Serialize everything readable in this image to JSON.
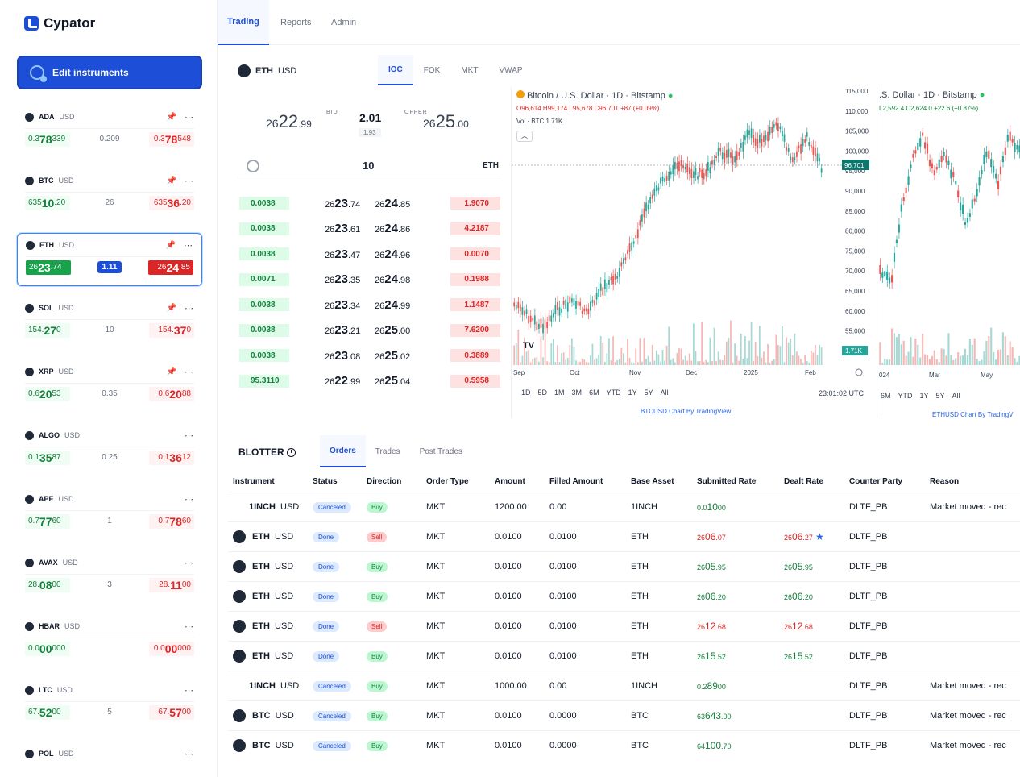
{
  "app": {
    "name": "Cypator"
  },
  "nav": {
    "tabs": [
      "Trading",
      "Reports",
      "Admin"
    ]
  },
  "sidebar": {
    "edit_button": "Edit instruments",
    "instruments": [
      {
        "sym": "ADA",
        "quote": "USD",
        "bid_pre": "0.3",
        "bid_big": "78",
        "bid_post": "339",
        "spread": "0.209",
        "ask_pre": "0.3",
        "ask_big": "78",
        "ask_post": "548",
        "pinned": true,
        "selected": false
      },
      {
        "sym": "BTC",
        "quote": "USD",
        "bid_pre": "635",
        "bid_big": "10",
        "bid_post": ".20",
        "spread": "26",
        "ask_pre": "635",
        "ask_big": "36",
        "ask_post": ".20",
        "pinned": true,
        "selected": false
      },
      {
        "sym": "ETH",
        "quote": "USD",
        "bid_pre": "26",
        "bid_big": "23",
        "bid_post": ".74",
        "spread": "1.11",
        "ask_pre": "26",
        "ask_big": "24",
        "ask_post": ".85",
        "pinned": true,
        "selected": true
      },
      {
        "sym": "SOL",
        "quote": "USD",
        "bid_pre": "154.",
        "bid_big": "27",
        "bid_post": "0",
        "spread": "10",
        "ask_pre": "154.",
        "ask_big": "37",
        "ask_post": "0",
        "pinned": true,
        "selected": false
      },
      {
        "sym": "XRP",
        "quote": "USD",
        "bid_pre": "0.6",
        "bid_big": "20",
        "bid_post": "53",
        "spread": "0.35",
        "ask_pre": "0.6",
        "ask_big": "20",
        "ask_post": "88",
        "pinned": true,
        "selected": false
      },
      {
        "sym": "ALGO",
        "quote": "USD",
        "bid_pre": "0.1",
        "bid_big": "35",
        "bid_post": "87",
        "spread": "0.25",
        "ask_pre": "0.1",
        "ask_big": "36",
        "ask_post": "12",
        "pinned": false,
        "selected": false
      },
      {
        "sym": "APE",
        "quote": "USD",
        "bid_pre": "0.7",
        "bid_big": "77",
        "bid_post": "60",
        "spread": "1",
        "ask_pre": "0.7",
        "ask_big": "78",
        "ask_post": "60",
        "pinned": false,
        "selected": false
      },
      {
        "sym": "AVAX",
        "quote": "USD",
        "bid_pre": "28.",
        "bid_big": "08",
        "bid_post": "00",
        "spread": "3",
        "ask_pre": "28.",
        "ask_big": "11",
        "ask_post": "00",
        "pinned": false,
        "selected": false
      },
      {
        "sym": "HBAR",
        "quote": "USD",
        "bid_pre": "0.0",
        "bid_big": "00",
        "bid_post": "000",
        "spread": "",
        "ask_pre": "0.0",
        "ask_big": "00",
        "ask_post": "000",
        "pinned": false,
        "selected": false
      },
      {
        "sym": "LTC",
        "quote": "USD",
        "bid_pre": "67.",
        "bid_big": "52",
        "bid_post": "00",
        "spread": "5",
        "ask_pre": "67.",
        "ask_big": "57",
        "ask_post": "00",
        "pinned": false,
        "selected": false
      },
      {
        "sym": "POL",
        "quote": "USD",
        "bid_pre": "",
        "bid_big": "",
        "bid_post": "",
        "spread": "",
        "ask_pre": "",
        "ask_big": "",
        "ask_post": "",
        "pinned": false,
        "selected": false
      }
    ]
  },
  "ticket": {
    "base": "ETH",
    "quote": "USD",
    "order_types": [
      "IOC",
      "FOK",
      "MKT",
      "VWAP"
    ],
    "bid_label": "BID",
    "offer_label": "OFFER",
    "bid": {
      "pre": "26",
      "big": "22",
      "post": ".99"
    },
    "offer": {
      "pre": "26",
      "big": "25",
      "post": ".00"
    },
    "spread": "2.01",
    "spread_sub": "1.93",
    "quantity": "10",
    "unit": "ETH",
    "ladder": [
      {
        "bid_qty": "0.0038",
        "b_pre": "26",
        "b_big": "23",
        "b_post": ".74",
        "a_pre": "26",
        "a_big": "24",
        "a_post": ".85",
        "ask_qty": "1.9070"
      },
      {
        "bid_qty": "0.0038",
        "b_pre": "26",
        "b_big": "23",
        "b_post": ".61",
        "a_pre": "26",
        "a_big": "24",
        "a_post": ".86",
        "ask_qty": "4.2187"
      },
      {
        "bid_qty": "0.0038",
        "b_pre": "26",
        "b_big": "23",
        "b_post": ".47",
        "a_pre": "26",
        "a_big": "24",
        "a_post": ".96",
        "ask_qty": "0.0070"
      },
      {
        "bid_qty": "0.0071",
        "b_pre": "26",
        "b_big": "23",
        "b_post": ".35",
        "a_pre": "26",
        "a_big": "24",
        "a_post": ".98",
        "ask_qty": "0.1988"
      },
      {
        "bid_qty": "0.0038",
        "b_pre": "26",
        "b_big": "23",
        "b_post": ".34",
        "a_pre": "26",
        "a_big": "24",
        "a_post": ".99",
        "ask_qty": "1.1487"
      },
      {
        "bid_qty": "0.0038",
        "b_pre": "26",
        "b_big": "23",
        "b_post": ".21",
        "a_pre": "26",
        "a_big": "25",
        "a_post": ".00",
        "ask_qty": "7.6200"
      },
      {
        "bid_qty": "0.0038",
        "b_pre": "26",
        "b_big": "23",
        "b_post": ".08",
        "a_pre": "26",
        "a_big": "25",
        "a_post": ".02",
        "ask_qty": "0.3889"
      },
      {
        "bid_qty": "95.3110",
        "b_pre": "26",
        "b_big": "22",
        "b_post": ".99",
        "a_pre": "26",
        "a_big": "25",
        "a_post": ".04",
        "ask_qty": "0.5958"
      }
    ]
  },
  "chart1": {
    "title": "Bitcoin / U.S. Dollar · 1D · Bitstamp",
    "ohlc": "O96,614 H99,174 L95,678 C96,701 +87 (+0.09%)",
    "vol": "Vol · BTC  1.71K",
    "price_labels": [
      "115,000",
      "110,000",
      "105,000",
      "100,000",
      "95,000",
      "90,000",
      "85,000",
      "80,000",
      "75,000",
      "70,000",
      "65,000",
      "60,000",
      "55,000"
    ],
    "last_price": "96,701",
    "vol_badge": "1.71K",
    "x_labels": [
      "Sep",
      "Oct",
      "Nov",
      "Dec",
      "2025",
      "Feb"
    ],
    "ranges": [
      "1D",
      "5D",
      "1M",
      "3M",
      "6M",
      "YTD",
      "1Y",
      "5Y",
      "All"
    ],
    "time": "23:01:02 UTC",
    "footer": "BTCUSD Chart By TradingView"
  },
  "chart2": {
    "title": ".S. Dollar · 1D · Bitstamp",
    "ohlc": "L2,592.4 C2,624.0 +22.6 (+0.87%)",
    "x_labels": [
      "024",
      "Mar",
      "May"
    ],
    "ranges": [
      "6M",
      "YTD",
      "1Y",
      "5Y",
      "All"
    ],
    "footer": "ETHUSD Chart By TradingV"
  },
  "blotter": {
    "title": "BLOTTER",
    "tabs": [
      "Orders",
      "Trades",
      "Post Trades"
    ],
    "columns": [
      "Instrument",
      "Status",
      "Direction",
      "Order Type",
      "Amount",
      "Filled Amount",
      "Base Asset",
      "Submitted Rate",
      "Dealt Rate",
      "Counter Party",
      "Reason"
    ],
    "rows": [
      {
        "sym": "1INCH",
        "quote": "USD",
        "status": "Canceled",
        "dir": "Buy",
        "type": "MKT",
        "amount": "1200.00",
        "filled": "0.00",
        "base": "1INCH",
        "sub_pre": "0.0",
        "sub_big": "10",
        "sub_post": "00",
        "sub_color": "green",
        "dealt_pre": "",
        "dealt_big": "",
        "dealt_post": "",
        "star": false,
        "cp": "DLTF_PB",
        "reason": "Market moved - rec"
      },
      {
        "sym": "ETH",
        "quote": "USD",
        "status": "Done",
        "dir": "Sell",
        "type": "MKT",
        "amount": "0.0100",
        "filled": "0.0100",
        "base": "ETH",
        "sub_pre": "26",
        "sub_big": "06",
        "sub_post": ".07",
        "sub_color": "red",
        "dealt_pre": "26",
        "dealt_big": "06",
        "dealt_post": ".27",
        "star": true,
        "cp": "DLTF_PB",
        "reason": ""
      },
      {
        "sym": "ETH",
        "quote": "USD",
        "status": "Done",
        "dir": "Buy",
        "type": "MKT",
        "amount": "0.0100",
        "filled": "0.0100",
        "base": "ETH",
        "sub_pre": "26",
        "sub_big": "05",
        "sub_post": ".95",
        "sub_color": "green",
        "dealt_pre": "26",
        "dealt_big": "05",
        "dealt_post": ".95",
        "star": false,
        "cp": "DLTF_PB",
        "reason": ""
      },
      {
        "sym": "ETH",
        "quote": "USD",
        "status": "Done",
        "dir": "Buy",
        "type": "MKT",
        "amount": "0.0100",
        "filled": "0.0100",
        "base": "ETH",
        "sub_pre": "26",
        "sub_big": "06",
        "sub_post": ".20",
        "sub_color": "green",
        "dealt_pre": "26",
        "dealt_big": "06",
        "dealt_post": ".20",
        "star": false,
        "cp": "DLTF_PB",
        "reason": ""
      },
      {
        "sym": "ETH",
        "quote": "USD",
        "status": "Done",
        "dir": "Sell",
        "type": "MKT",
        "amount": "0.0100",
        "filled": "0.0100",
        "base": "ETH",
        "sub_pre": "26",
        "sub_big": "12",
        "sub_post": ".68",
        "sub_color": "red",
        "dealt_pre": "26",
        "dealt_big": "12",
        "dealt_post": ".68",
        "star": false,
        "cp": "DLTF_PB",
        "reason": ""
      },
      {
        "sym": "ETH",
        "quote": "USD",
        "status": "Done",
        "dir": "Buy",
        "type": "MKT",
        "amount": "0.0100",
        "filled": "0.0100",
        "base": "ETH",
        "sub_pre": "26",
        "sub_big": "15",
        "sub_post": ".52",
        "sub_color": "green",
        "dealt_pre": "26",
        "dealt_big": "15",
        "dealt_post": ".52",
        "star": false,
        "cp": "DLTF_PB",
        "reason": ""
      },
      {
        "sym": "1INCH",
        "quote": "USD",
        "status": "Canceled",
        "dir": "Buy",
        "type": "MKT",
        "amount": "1000.00",
        "filled": "0.00",
        "base": "1INCH",
        "sub_pre": "0.2",
        "sub_big": "89",
        "sub_post": "00",
        "sub_color": "green",
        "dealt_pre": "",
        "dealt_big": "",
        "dealt_post": "",
        "star": false,
        "cp": "DLTF_PB",
        "reason": "Market moved - rec"
      },
      {
        "sym": "BTC",
        "quote": "USD",
        "status": "Canceled",
        "dir": "Buy",
        "type": "MKT",
        "amount": "0.0100",
        "filled": "0.0000",
        "base": "BTC",
        "sub_pre": "63",
        "sub_big": "643",
        "sub_post": ".00",
        "sub_color": "green",
        "dealt_pre": "",
        "dealt_big": "",
        "dealt_post": "",
        "star": false,
        "cp": "DLTF_PB",
        "reason": "Market moved - rec"
      },
      {
        "sym": "BTC",
        "quote": "USD",
        "status": "Canceled",
        "dir": "Buy",
        "type": "MKT",
        "amount": "0.0100",
        "filled": "0.0000",
        "base": "BTC",
        "sub_pre": "64",
        "sub_big": "100",
        "sub_post": ".70",
        "sub_color": "green",
        "dealt_pre": "",
        "dealt_big": "",
        "dealt_post": "",
        "star": false,
        "cp": "DLTF_PB",
        "reason": "Market moved - rec"
      }
    ]
  }
}
